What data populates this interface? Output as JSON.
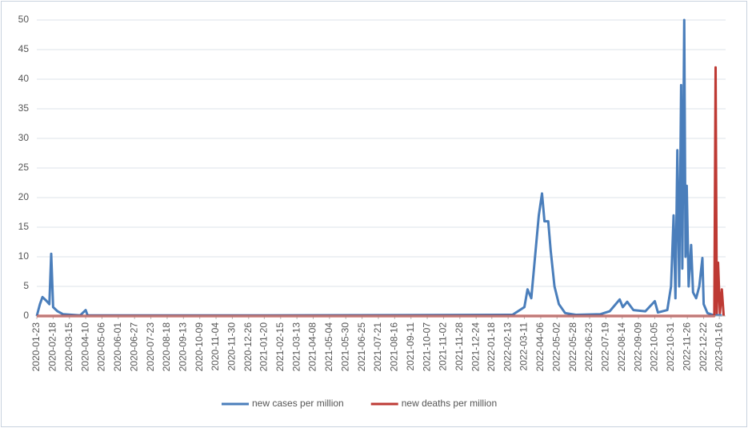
{
  "chart_data": {
    "type": "line",
    "xticks": [
      "2020-01-23",
      "2020-02-18",
      "2020-03-15",
      "2020-04-10",
      "2020-05-06",
      "2020-06-01",
      "2020-06-27",
      "2020-07-23",
      "2020-08-18",
      "2020-09-13",
      "2020-10-09",
      "2020-11-04",
      "2020-11-30",
      "2020-12-26",
      "2021-01-20",
      "2021-02-15",
      "2021-03-13",
      "2021-04-08",
      "2021-05-04",
      "2021-05-30",
      "2021-06-25",
      "2021-07-21",
      "2021-08-16",
      "2021-09-11",
      "2021-10-07",
      "2021-11-02",
      "2021-11-28",
      "2021-12-24",
      "2022-01-18",
      "2022-02-13",
      "2022-03-11",
      "2022-04-06",
      "2022-05-02",
      "2022-05-28",
      "2022-06-23",
      "2022-07-19",
      "2022-08-14",
      "2022-09-09",
      "2022-10-05",
      "2022-10-31",
      "2022-11-26",
      "2022-12-22",
      "2023-01-16"
    ],
    "xlim": [
      "2020-01-23",
      "2023-01-26"
    ],
    "ylim": [
      0,
      50
    ],
    "yticks": [
      0,
      5,
      10,
      15,
      20,
      25,
      30,
      35,
      40,
      45,
      50
    ],
    "grid": true,
    "legend": "bottom",
    "series": [
      {
        "name": "new cases per million",
        "color": "#4a7ebb",
        "x": [
          "2020-01-23",
          "2020-01-28",
          "2020-02-01",
          "2020-02-08",
          "2020-02-12",
          "2020-02-15",
          "2020-02-18",
          "2020-02-25",
          "2020-03-05",
          "2020-04-01",
          "2020-04-10",
          "2020-04-13",
          "2020-05-06",
          "2021-01-20",
          "2022-02-20",
          "2022-03-11",
          "2022-03-16",
          "2022-03-22",
          "2022-03-28",
          "2022-04-03",
          "2022-04-08",
          "2022-04-12",
          "2022-04-18",
          "2022-04-22",
          "2022-04-28",
          "2022-05-05",
          "2022-05-15",
          "2022-06-01",
          "2022-07-10",
          "2022-07-25",
          "2022-08-10",
          "2022-08-15",
          "2022-08-22",
          "2022-09-01",
          "2022-09-20",
          "2022-10-05",
          "2022-10-10",
          "2022-10-25",
          "2022-10-31",
          "2022-11-04",
          "2022-11-07",
          "2022-11-10",
          "2022-11-13",
          "2022-11-16",
          "2022-11-18",
          "2022-11-21",
          "2022-11-23",
          "2022-11-25",
          "2022-11-28",
          "2022-12-02",
          "2022-12-05",
          "2022-12-10",
          "2022-12-15",
          "2022-12-20",
          "2022-12-22",
          "2022-12-28",
          "2023-01-05",
          "2023-01-20"
        ],
        "values": [
          0,
          2,
          3.2,
          2.5,
          2,
          10.5,
          1.5,
          0.8,
          0.3,
          0.1,
          1,
          0.1,
          0.1,
          0.1,
          0.2,
          1.5,
          4.5,
          3,
          10,
          17,
          20.7,
          16,
          16,
          11,
          5,
          2,
          0.5,
          0.2,
          0.3,
          0.8,
          2.8,
          1.5,
          2.4,
          1,
          0.8,
          2.5,
          0.6,
          1,
          5,
          17,
          3,
          28,
          5,
          39,
          8,
          50,
          10,
          22,
          5,
          12,
          4,
          3,
          5,
          9.8,
          2,
          0.5,
          0.2,
          0.1
        ]
      },
      {
        "name": "new deaths per million",
        "color": "#be3a34",
        "x": [
          "2020-01-23",
          "2023-01-05",
          "2023-01-08",
          "2023-01-10",
          "2023-01-12",
          "2023-01-14",
          "2023-01-17",
          "2023-01-20",
          "2023-01-23"
        ],
        "values": [
          0,
          0,
          0,
          42,
          0.5,
          9,
          0.5,
          4.5,
          0
        ]
      }
    ]
  }
}
